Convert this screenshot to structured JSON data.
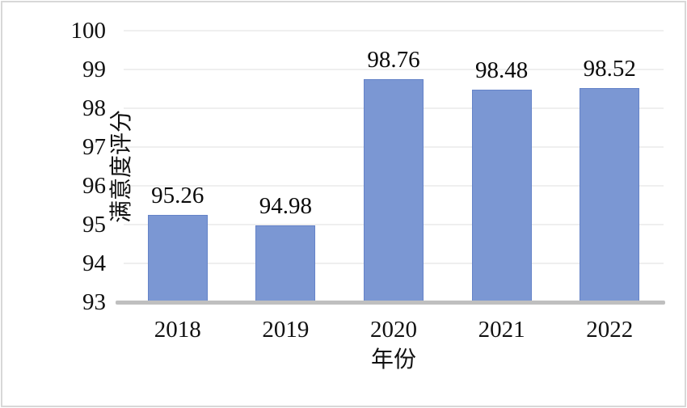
{
  "chart_data": {
    "type": "bar",
    "categories": [
      "2018",
      "2019",
      "2020",
      "2021",
      "2022"
    ],
    "values": [
      95.26,
      94.98,
      98.76,
      98.48,
      98.52
    ],
    "value_labels": [
      "95.26",
      "94.98",
      "98.76",
      "98.48",
      "98.52"
    ],
    "title": "",
    "xlabel": "年份",
    "ylabel": "满意度评分",
    "ylim": [
      93,
      100
    ],
    "yticks": [
      93,
      94,
      95,
      96,
      97,
      98,
      99,
      100
    ],
    "ytick_labels": [
      "93",
      "94",
      "95",
      "96",
      "97",
      "98",
      "99",
      "100"
    ],
    "grid": "horizontal",
    "legend": "none",
    "colors": {
      "bar_fill": "#7b97d3",
      "bar_border": "#6583c8",
      "gridline": "#efefef",
      "axis_line": "#bfbfbf",
      "text": "#111111",
      "frame_border": "#d8d8d8",
      "background": "#ffffff"
    }
  }
}
